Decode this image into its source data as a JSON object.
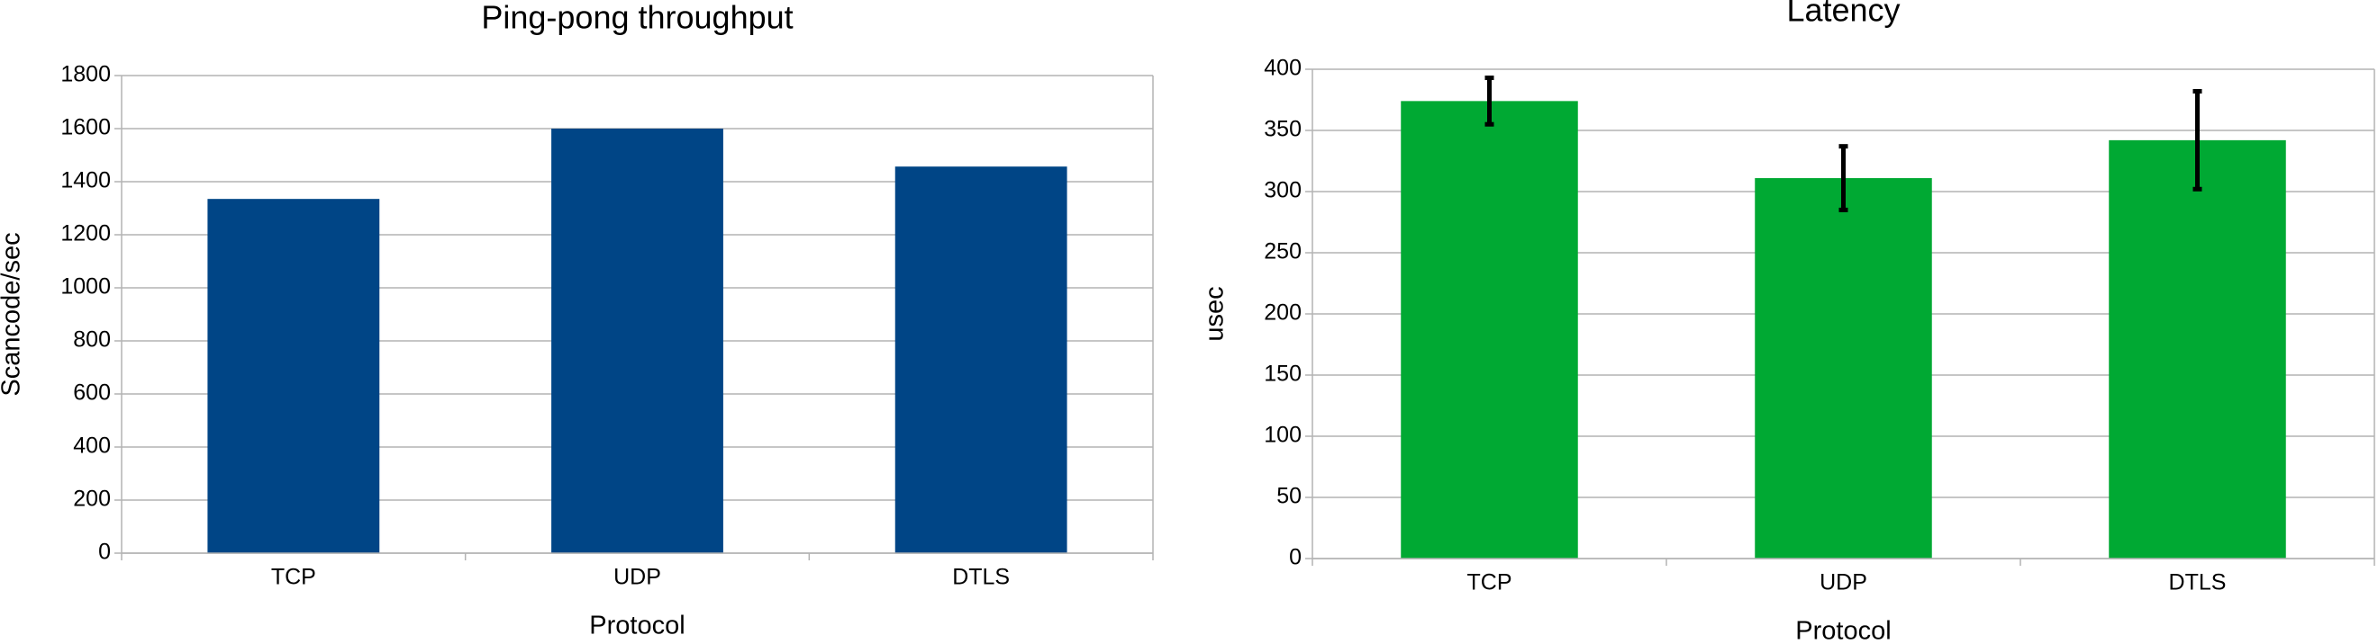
{
  "chart_data": [
    {
      "type": "bar",
      "title": "Ping-pong throughput",
      "x_label": "Protocol",
      "y_label": "Scancode/sec",
      "categories": [
        "TCP",
        "UDP",
        "DTLS"
      ],
      "values": [
        1335,
        1600,
        1457
      ],
      "color": "#004586",
      "ylim": [
        0,
        1800
      ],
      "yticks": [
        0,
        200,
        400,
        600,
        800,
        1000,
        1200,
        1400,
        1600,
        1800
      ],
      "grid": true
    },
    {
      "type": "bar",
      "title": "Latency",
      "x_label": "Protocol",
      "y_label": "usec",
      "categories": [
        "TCP",
        "UDP",
        "DTLS"
      ],
      "values": [
        374,
        311,
        342
      ],
      "errors": [
        19,
        26,
        40
      ],
      "color": "#00a933",
      "ylim": [
        0,
        400
      ],
      "yticks": [
        0,
        50,
        100,
        150,
        200,
        250,
        300,
        350,
        400
      ],
      "grid": true
    }
  ]
}
